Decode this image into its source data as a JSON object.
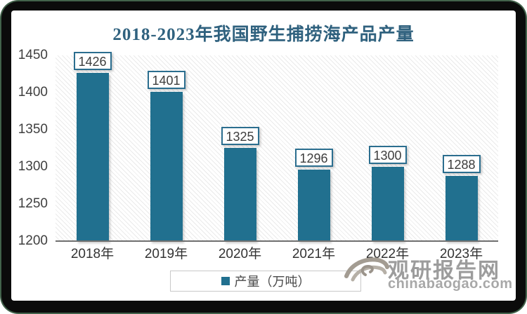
{
  "chart_data": {
    "type": "bar",
    "title": "2018-2023年我国野生捕捞海产品产量",
    "categories": [
      "2018年",
      "2019年",
      "2020年",
      "2021年",
      "2022年",
      "2023年"
    ],
    "values": [
      1426,
      1401,
      1325,
      1296,
      1300,
      1288
    ],
    "series": [
      {
        "name": "产量（万吨）",
        "values": [
          1426,
          1401,
          1325,
          1296,
          1300,
          1288
        ]
      }
    ],
    "xlabel": "",
    "ylabel": "",
    "ylim": [
      1200,
      1450
    ],
    "yticks": [
      1200,
      1250,
      1300,
      1350,
      1400,
      1450
    ],
    "grid": false,
    "data_labels": true,
    "legend_position": "bottom-center",
    "plot_background": "diagonal-hatch"
  },
  "legend": {
    "label": "产量（万吨）",
    "marker_color": "#21708F"
  },
  "watermark": {
    "logo": "swirl-logo",
    "brand": "观研报告网",
    "domain": "chinabaogao.com"
  },
  "colors": {
    "bar": "#21708F",
    "title": "#2F617E",
    "axis_text": "#3F3F3F",
    "axis_line": "#6F6F6F",
    "value_box_border": "#2B6E8F",
    "legend_border": "#C9C9C9",
    "frame_black": "#0B0B0B",
    "frame_green": "#42624B",
    "watermark_gray": "#9C9C9C"
  }
}
